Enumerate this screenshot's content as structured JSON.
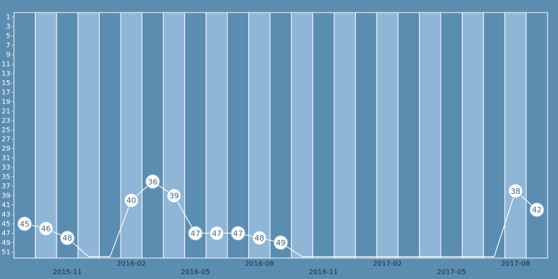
{
  "chart_data": {
    "type": "line",
    "categories": [
      null,
      null,
      "2015-11",
      null,
      null,
      "2016-02",
      null,
      null,
      "2016-05",
      null,
      null,
      "2016-08",
      null,
      null,
      "2016-11",
      null,
      null,
      "2017-02",
      null,
      null,
      "2017-05",
      null,
      null,
      "2017-08",
      null
    ],
    "values": [
      45,
      46,
      48,
      52,
      52,
      40,
      36,
      39,
      47,
      47,
      47,
      48,
      49,
      52,
      52,
      52,
      52,
      52,
      52,
      52,
      52,
      52,
      52,
      38,
      42
    ],
    "value_labels": [
      "45",
      "46",
      "48",
      null,
      null,
      "40",
      "36",
      "39",
      "47",
      "47",
      "47",
      "48",
      "49",
      null,
      null,
      null,
      null,
      null,
      null,
      null,
      null,
      null,
      null,
      "38",
      "42"
    ],
    "ylim": [
      0,
      52
    ],
    "y_reversed": true,
    "yticks": [
      1,
      3,
      5,
      7,
      9,
      11,
      13,
      15,
      17,
      19,
      21,
      23,
      25,
      27,
      29,
      31,
      33,
      35,
      37,
      39,
      41,
      43,
      45,
      47,
      49,
      51
    ],
    "color": "#ffffff",
    "band_colors": [
      "#5b8db0",
      "#8fb6d6"
    ]
  }
}
